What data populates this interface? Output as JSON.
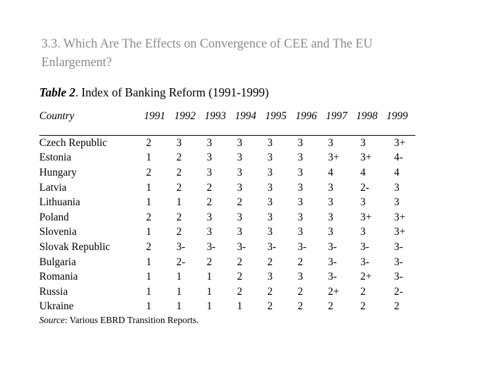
{
  "slide": {
    "heading": "3.3. Which Are The Effects on Convergence of CEE and The EU Enlargement?"
  },
  "table": {
    "title_label": "Table 2",
    "title_rest": ". Index of Banking Reform (1991-1999)",
    "columns": [
      "Country",
      "1991",
      "1992",
      "1993",
      "1994",
      "1995",
      "1996",
      "1997",
      "1998",
      "1999"
    ],
    "rows": [
      {
        "country": "Czech Republic",
        "values": [
          "2",
          "3",
          "3",
          "3",
          "3",
          "3",
          "3",
          "3",
          "3+"
        ]
      },
      {
        "country": "Estonia",
        "values": [
          "1",
          "2",
          "3",
          "3",
          "3",
          "3",
          "3+",
          "3+",
          "4-"
        ]
      },
      {
        "country": "Hungary",
        "values": [
          "2",
          "2",
          "3",
          "3",
          "3",
          "3",
          "4",
          "4",
          "4"
        ]
      },
      {
        "country": "Latvia",
        "values": [
          "1",
          "2",
          "2",
          "3",
          "3",
          "3",
          "3",
          "2-",
          "3"
        ]
      },
      {
        "country": "Lithuania",
        "values": [
          "1",
          "1",
          "2",
          "2",
          "3",
          "3",
          "3",
          "3",
          "3"
        ]
      },
      {
        "country": "Poland",
        "values": [
          "2",
          "2",
          "3",
          "3",
          "3",
          "3",
          "3",
          "3+",
          "3+"
        ]
      },
      {
        "country": "Slovenia",
        "values": [
          "1",
          "2",
          "3",
          "3",
          "3",
          "3",
          "3",
          "3",
          "3+"
        ]
      },
      {
        "country": "Slovak Republic",
        "values": [
          "2",
          "3-",
          "3-",
          "3-",
          "3-",
          "3-",
          "3-",
          "3-",
          "3-"
        ]
      },
      {
        "country": "Bulgaria",
        "values": [
          "1",
          "2-",
          "2",
          "2",
          "2",
          "2",
          "3-",
          "3-",
          "3-"
        ]
      },
      {
        "country": "Romania",
        "values": [
          "1",
          "1",
          "1",
          "2",
          "3",
          "3",
          "3-",
          "2+",
          "3-"
        ]
      },
      {
        "country": "Russia",
        "values": [
          "1",
          "1",
          "1",
          "2",
          "2",
          "2",
          "2+",
          "2",
          "2-"
        ]
      },
      {
        "country": "Ukraine",
        "values": [
          "1",
          "1",
          "1",
          "1",
          "2",
          "2",
          "2",
          "2",
          "2"
        ]
      }
    ],
    "source_label": "Source",
    "source_rest": ": Various EBRD Transition Reports.",
    "text_color": "#000000",
    "heading_color": "#8a8a8a"
  }
}
